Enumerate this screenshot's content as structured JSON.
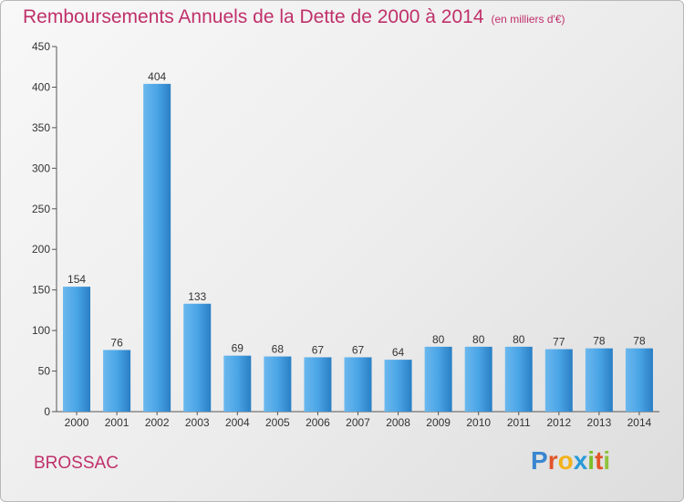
{
  "title": "Remboursements Annuels de la Dette de 2000 à 2014",
  "subtitle": "(en milliers d'€)",
  "commune": "BROSSAC",
  "logo": {
    "letters": [
      "P",
      "r",
      "o",
      "x",
      "i",
      "t",
      "i"
    ],
    "colors": [
      "#3a86d0",
      "#e2542a",
      "#f2b21c",
      "#2a9ad8",
      "#7bbf2a",
      "#e2542a",
      "#8fc23a"
    ]
  },
  "colors": {
    "bar": "#3f9be0",
    "bar_light": "#6bb8ee",
    "bar_dark": "#2a7fc4",
    "title": "#c0306a"
  },
  "chart_data": {
    "type": "bar",
    "categories": [
      "2000",
      "2001",
      "2002",
      "2003",
      "2004",
      "2005",
      "2006",
      "2007",
      "2008",
      "2009",
      "2010",
      "2011",
      "2012",
      "2013",
      "2014"
    ],
    "values": [
      154,
      76,
      404,
      133,
      69,
      68,
      67,
      67,
      64,
      80,
      80,
      80,
      77,
      78,
      78
    ],
    "ylim": [
      0,
      450
    ],
    "yticks": [
      0,
      50,
      100,
      150,
      200,
      250,
      300,
      350,
      400,
      450
    ],
    "grid": false
  }
}
